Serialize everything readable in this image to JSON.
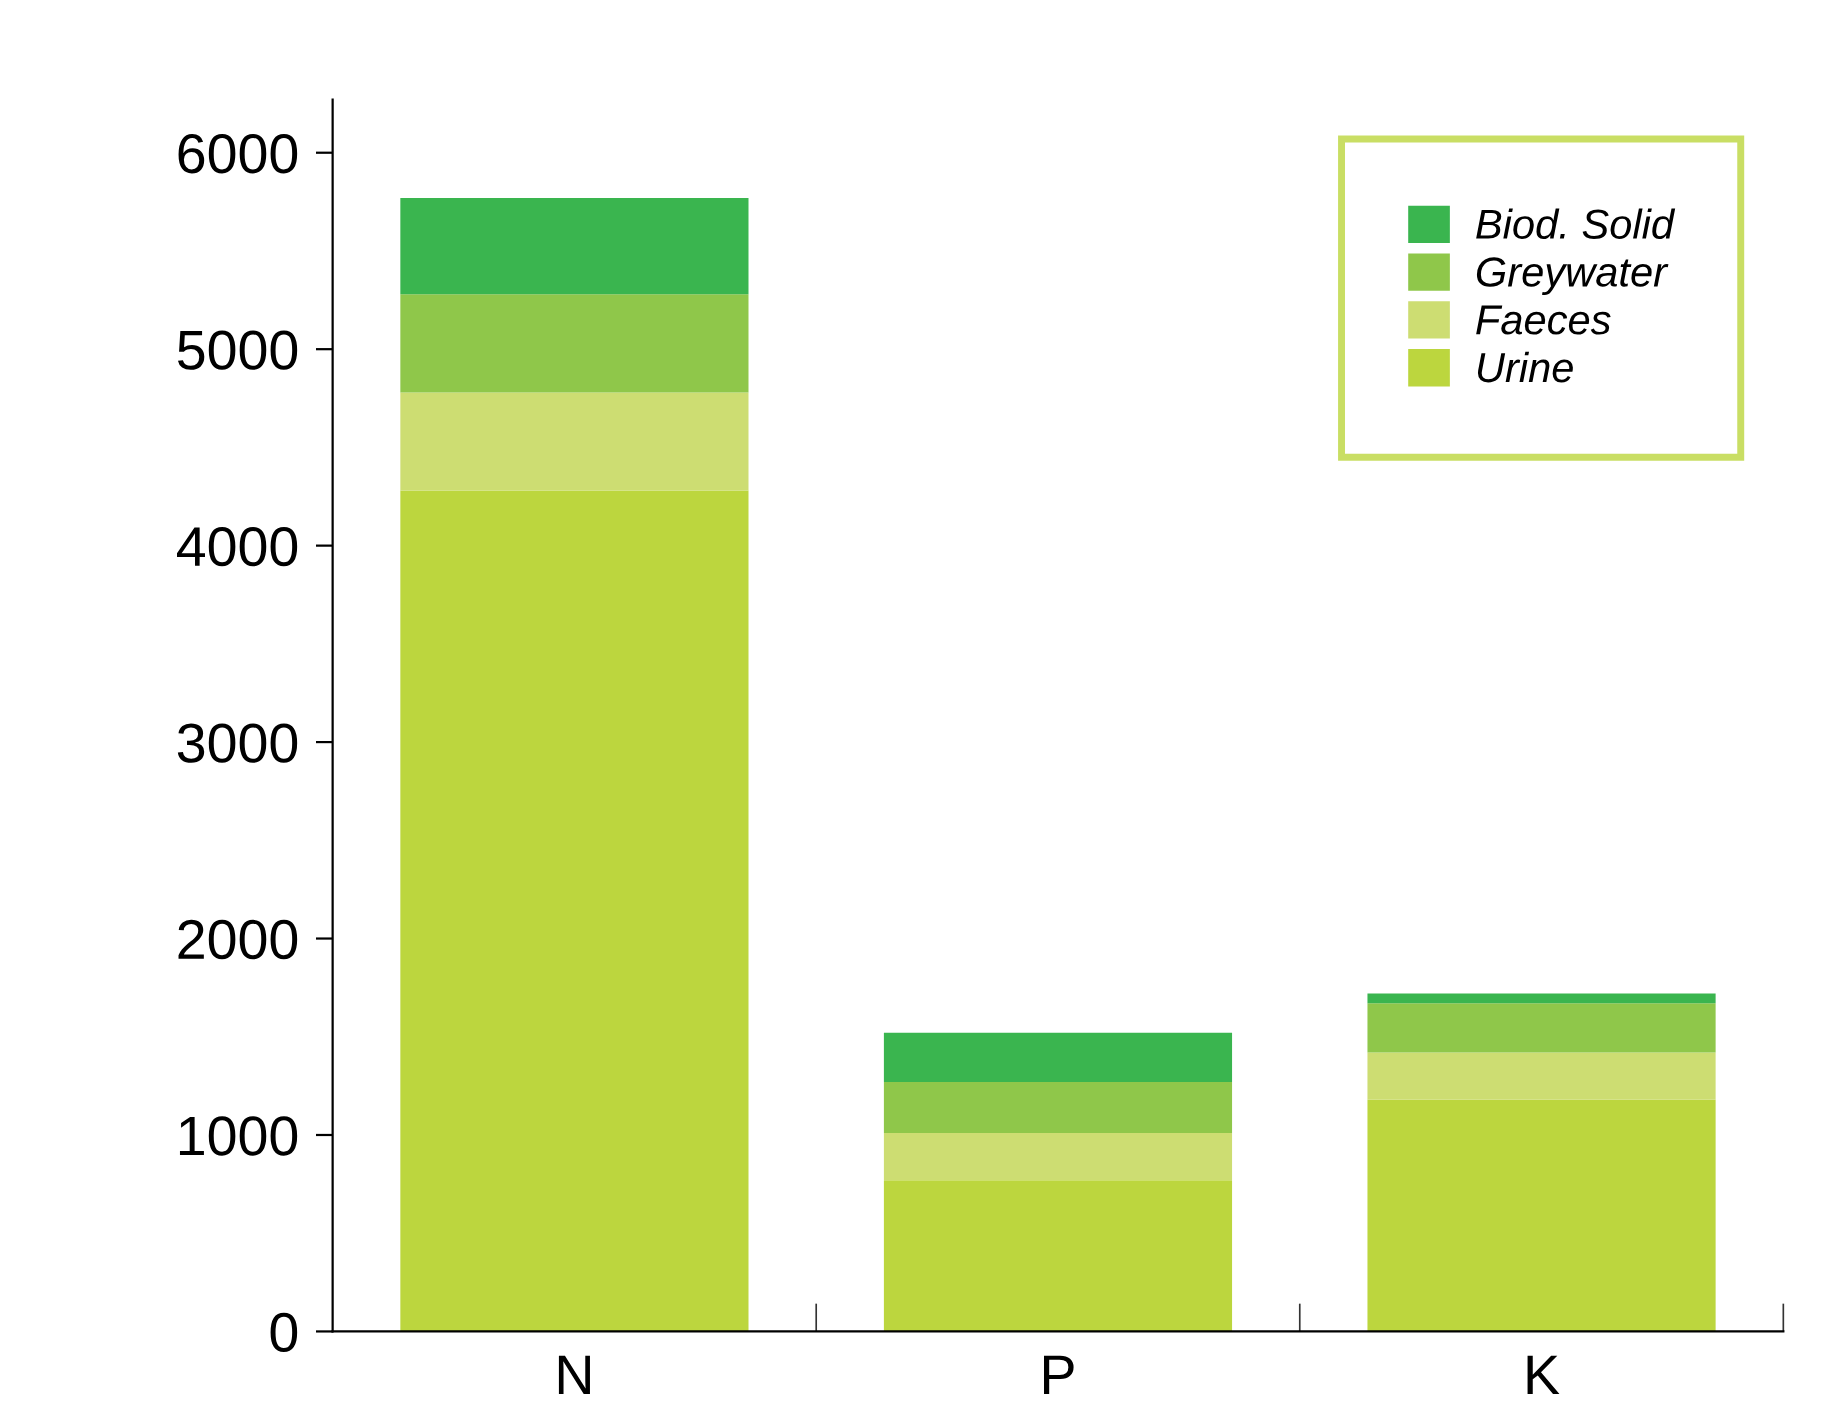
{
  "chart_data": {
    "type": "bar",
    "stacked": true,
    "categories": [
      "N",
      "P",
      "K"
    ],
    "series": [
      {
        "name": "Urine",
        "color": "#bcd63e",
        "values": [
          4280,
          770,
          1180
        ]
      },
      {
        "name": "Faeces",
        "color": "#cddd72",
        "values": [
          500,
          240,
          240
        ]
      },
      {
        "name": "Greywater",
        "color": "#8fc74a",
        "values": [
          500,
          260,
          250
        ]
      },
      {
        "name": "Biod. Solid",
        "color": "#3ab54f",
        "values": [
          490,
          250,
          50
        ]
      }
    ],
    "ylim": [
      0,
      6270
    ],
    "yticks": [
      0,
      1000,
      2000,
      3000,
      4000,
      5000,
      6000
    ],
    "grid": false,
    "legend": "top right"
  }
}
